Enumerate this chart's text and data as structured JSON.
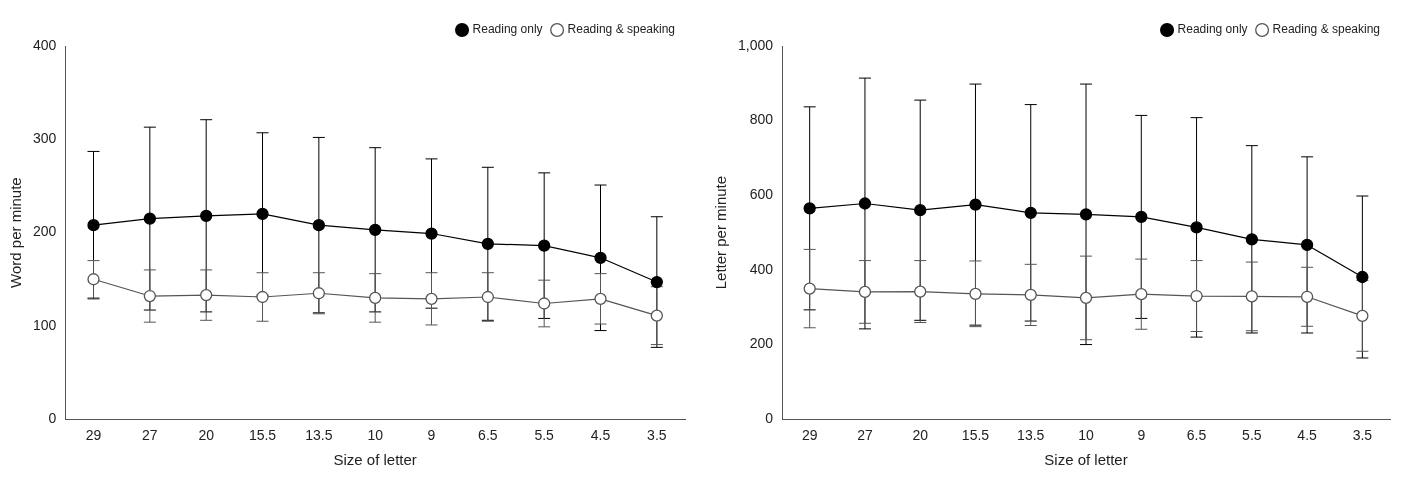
{
  "chart_data": [
    {
      "type": "line",
      "xlabel": "Size of letter",
      "ylabel": "Word per minute",
      "categories": [
        "29",
        "27",
        "20",
        "15.5",
        "13.5",
        "10",
        "9",
        "6.5",
        "5.5",
        "4.5",
        "3.5"
      ],
      "series": [
        {
          "name": "Reading only",
          "color": "#000000",
          "values": [
            208,
            215,
            218,
            220,
            208,
            203,
            199,
            188,
            186,
            173,
            147
          ],
          "errors": [
            79,
            98,
            103,
            87,
            94,
            88,
            80,
            82,
            78,
            78,
            70
          ]
        },
        {
          "name": "Reading & speaking",
          "color": "#555555",
          "values": [
            150,
            132,
            133,
            131,
            135,
            130,
            129,
            131,
            124,
            129,
            111
          ],
          "errors": [
            20,
            28,
            27,
            26,
            22,
            26,
            28,
            26,
            25,
            27,
            31
          ]
        }
      ],
      "ylim": [
        0,
        400
      ],
      "yticks": [
        0,
        100,
        200,
        300,
        400
      ],
      "grid": false,
      "legend": "top right",
      "marker": "circle",
      "line_style": "solid"
    },
    {
      "type": "line",
      "xlabel": "Size of letter",
      "ylabel": "Letter per minute",
      "categories": [
        "29",
        "27",
        "20",
        "15.5",
        "13.5",
        "10",
        "9",
        "6.5",
        "5.5",
        "4.5",
        "3.5"
      ],
      "series": [
        {
          "name": "Reading only",
          "color": "#000000",
          "values": [
            565,
            578,
            560,
            575,
            553,
            549,
            542,
            514,
            482,
            467,
            381
          ],
          "errors": [
            272,
            336,
            295,
            323,
            290,
            349,
            272,
            294,
            251,
            236,
            217
          ]
        },
        {
          "name": "Reading & speaking",
          "color": "#555555",
          "values": [
            350,
            341,
            342,
            336,
            333,
            325,
            335,
            330,
            329,
            328,
            277
          ],
          "errors": [
            105,
            84,
            83,
            88,
            82,
            112,
            94,
            95,
            92,
            79,
            95
          ]
        }
      ],
      "ylim": [
        0,
        1000
      ],
      "yticks": [
        0,
        200,
        400,
        600,
        800,
        {
          "value": 1000,
          "label": "1,000"
        }
      ],
      "grid": false,
      "legend": "top right",
      "marker": "circle",
      "line_style": "solid"
    }
  ]
}
